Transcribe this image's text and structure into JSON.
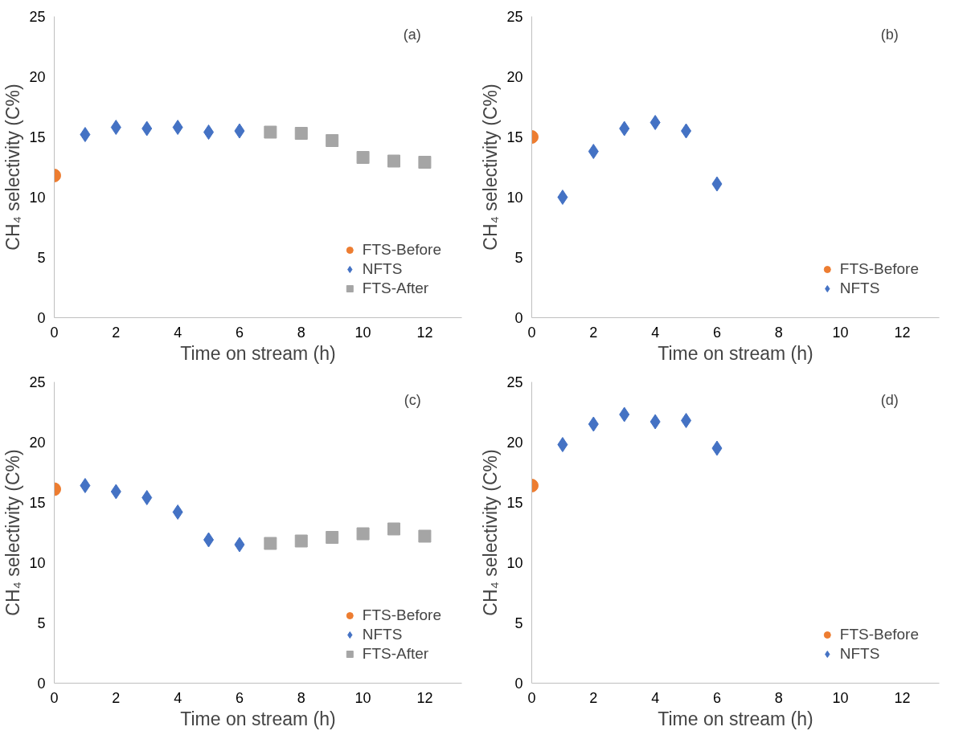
{
  "chart_data": [
    {
      "type": "scatter",
      "xlabel": "Time on stream (h)",
      "ylabel": "CH₄ selectivity (C%)",
      "annotations": [
        "(a)"
      ],
      "xlim": [
        0,
        13.2
      ],
      "ylim": [
        0,
        25
      ],
      "xticks": [
        0,
        2,
        4,
        6,
        8,
        10,
        12
      ],
      "yticks": [
        0,
        5,
        10,
        15,
        20,
        25
      ],
      "grid": false,
      "legend": "bottom right",
      "series": [
        {
          "name": "FTS-Before",
          "color": "#ed7d31",
          "marker": "circle",
          "x": [
            0
          ],
          "values": [
            11.8
          ]
        },
        {
          "name": "NFTS",
          "color": "#4472c4",
          "marker": "diamond",
          "x": [
            1,
            2,
            3,
            4,
            5,
            6
          ],
          "values": [
            15.2,
            15.8,
            15.7,
            15.8,
            15.4,
            15.5
          ]
        },
        {
          "name": "FTS-After",
          "color": "#a5a5a5",
          "marker": "square",
          "x": [
            7,
            8,
            9,
            10,
            11,
            12
          ],
          "values": [
            15.4,
            15.3,
            14.7,
            13.3,
            13.0,
            12.9
          ]
        }
      ]
    },
    {
      "type": "scatter",
      "xlabel": "Time on stream (h)",
      "ylabel": "CH₄ selectivity (C%)",
      "annotations": [
        "(b)"
      ],
      "xlim": [
        0,
        13.2
      ],
      "ylim": [
        0,
        25
      ],
      "xticks": [
        0,
        2,
        4,
        6,
        8,
        10,
        12
      ],
      "yticks": [
        0,
        5,
        10,
        15,
        20,
        25
      ],
      "grid": false,
      "legend": "bottom right",
      "series": [
        {
          "name": "FTS-Before",
          "color": "#ed7d31",
          "marker": "circle",
          "x": [
            0
          ],
          "values": [
            15.0
          ]
        },
        {
          "name": "NFTS",
          "color": "#4472c4",
          "marker": "diamond",
          "x": [
            1,
            2,
            3,
            4,
            5,
            6
          ],
          "values": [
            10.0,
            13.8,
            15.7,
            16.2,
            15.5,
            11.1
          ]
        }
      ]
    },
    {
      "type": "scatter",
      "xlabel": "Time on stream (h)",
      "ylabel": "CH₄ selectivity (C%)",
      "annotations": [
        "(c)"
      ],
      "xlim": [
        0,
        13.2
      ],
      "ylim": [
        0,
        25
      ],
      "xticks": [
        0,
        2,
        4,
        6,
        8,
        10,
        12
      ],
      "yticks": [
        0,
        5,
        10,
        15,
        20,
        25
      ],
      "grid": false,
      "legend": "bottom right",
      "series": [
        {
          "name": "FTS-Before",
          "color": "#ed7d31",
          "marker": "circle",
          "x": [
            0
          ],
          "values": [
            16.1
          ]
        },
        {
          "name": "NFTS",
          "color": "#4472c4",
          "marker": "diamond",
          "x": [
            1,
            2,
            3,
            4,
            5,
            6
          ],
          "values": [
            16.4,
            15.9,
            15.4,
            14.2,
            11.9,
            11.5
          ]
        },
        {
          "name": "FTS-After",
          "color": "#a5a5a5",
          "marker": "square",
          "x": [
            7,
            8,
            9,
            10,
            11,
            12
          ],
          "values": [
            11.6,
            11.8,
            12.1,
            12.4,
            12.8,
            12.2
          ]
        }
      ]
    },
    {
      "type": "scatter",
      "xlabel": "Time on stream (h)",
      "ylabel": "CH₄ selectivity (C%)",
      "annotations": [
        "(d)"
      ],
      "xlim": [
        0,
        13.2
      ],
      "ylim": [
        0,
        25
      ],
      "xticks": [
        0,
        2,
        4,
        6,
        8,
        10,
        12
      ],
      "yticks": [
        0,
        5,
        10,
        15,
        20,
        25
      ],
      "grid": false,
      "legend": "bottom right",
      "series": [
        {
          "name": "FTS-Before",
          "color": "#ed7d31",
          "marker": "circle",
          "x": [
            0
          ],
          "values": [
            16.4
          ]
        },
        {
          "name": "NFTS",
          "color": "#4472c4",
          "marker": "diamond",
          "x": [
            1,
            2,
            3,
            4,
            5,
            6
          ],
          "values": [
            19.8,
            21.5,
            22.3,
            21.7,
            21.8,
            19.5
          ]
        }
      ]
    }
  ]
}
